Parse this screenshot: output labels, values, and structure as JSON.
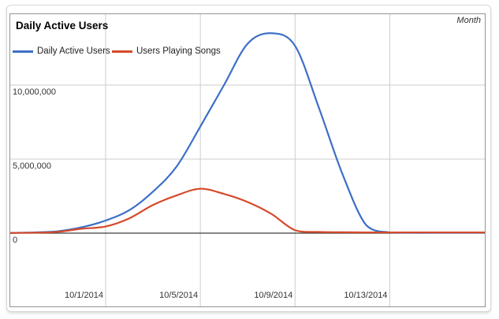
{
  "chart_data": {
    "type": "line",
    "title": "Daily Active Users",
    "x_axis_note": "Month",
    "x": [
      "9/27/2014",
      "9/28/2014",
      "9/29/2014",
      "9/30/2014",
      "10/1/2014",
      "10/2/2014",
      "10/3/2014",
      "10/4/2014",
      "10/5/2014",
      "10/6/2014",
      "10/7/2014",
      "10/8/2014",
      "10/9/2014",
      "10/10/2014",
      "10/11/2014",
      "10/12/2014",
      "10/13/2014",
      "10/14/2014",
      "10/15/2014",
      "10/16/2014",
      "10/17/2014"
    ],
    "series": [
      {
        "name": "Daily Active Users",
        "color": "#3d6fc7",
        "values": [
          20000,
          50000,
          130000,
          400000,
          850000,
          1550000,
          2800000,
          4500000,
          7200000,
          10000000,
          12800000,
          13500000,
          12650000,
          8500000,
          4000000,
          550000,
          50000,
          30000,
          30000,
          30000,
          30000
        ]
      },
      {
        "name": "Users Playing Songs",
        "color": "#d6492a",
        "values": [
          10000,
          30000,
          90000,
          300000,
          450000,
          1000000,
          1900000,
          2550000,
          3000000,
          2650000,
          2100000,
          1300000,
          200000,
          80000,
          60000,
          50000,
          50000,
          50000,
          50000,
          50000,
          50000
        ]
      }
    ],
    "x_ticks": [
      {
        "label": "10/1/2014",
        "date": "10/1/2014"
      },
      {
        "label": "10/5/2014",
        "date": "10/5/2014"
      },
      {
        "label": "10/9/2014",
        "date": "10/9/2014"
      },
      {
        "label": "10/13/2014",
        "date": "10/13/2014"
      }
    ],
    "y_ticks": [
      {
        "label": "0",
        "value": 0
      },
      {
        "label": "5,000,000",
        "value": 5000000
      },
      {
        "label": "10,000,000",
        "value": 10000000
      }
    ],
    "ylim": [
      0,
      14800000
    ],
    "grid": true,
    "legend_position": "top-left",
    "colors": {
      "gridline": "#cccccc",
      "zero_line": "#3c3c3c",
      "frame_border": "#949494",
      "text": "#333333"
    }
  }
}
